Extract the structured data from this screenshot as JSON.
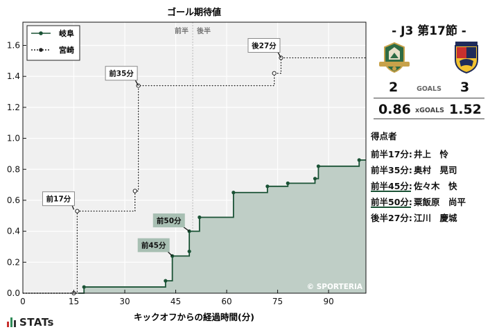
{
  "chart_data": {
    "type": "line",
    "title": "ゴール期待値",
    "xlabel": "キックオフからの経過時間(分)",
    "ylabel": "",
    "xlim": [
      0,
      101
    ],
    "ylim": [
      0,
      1.75
    ],
    "x_ticks": [
      0,
      15,
      30,
      45,
      60,
      75,
      90
    ],
    "y_ticks": [
      0.0,
      0.2,
      0.4,
      0.6,
      0.8,
      1.0,
      1.2,
      1.4,
      1.6
    ],
    "halftime_x": 50,
    "halftime_labels": {
      "first": "前半",
      "second": "後半"
    },
    "grid": true,
    "legend_position": "top-left",
    "watermark": "© SPORTERIA",
    "series": [
      {
        "name": "岐阜",
        "color": "#1a5235",
        "fill": "#bfcec6",
        "style": "solid",
        "points": [
          [
            0,
            0.0
          ],
          [
            18,
            0.04
          ],
          [
            42,
            0.08
          ],
          [
            44,
            0.24
          ],
          [
            49,
            0.27
          ],
          [
            49,
            0.4
          ],
          [
            52,
            0.49
          ],
          [
            62,
            0.65
          ],
          [
            72,
            0.69
          ],
          [
            78,
            0.71
          ],
          [
            86,
            0.74
          ],
          [
            87,
            0.82
          ],
          [
            99,
            0.86
          ],
          [
            101,
            0.86
          ]
        ]
      },
      {
        "name": "宮崎",
        "color": "#222222",
        "fill": "none",
        "style": "dashed",
        "points": [
          [
            0,
            0.0
          ],
          [
            15,
            0.0
          ],
          [
            16,
            0.53
          ],
          [
            33,
            0.66
          ],
          [
            34,
            1.34
          ],
          [
            74,
            1.42
          ],
          [
            76,
            1.52
          ],
          [
            101,
            1.52
          ]
        ]
      }
    ],
    "annotations": [
      {
        "label": "前17分",
        "x": 15,
        "y": 0.54,
        "team": "宮崎",
        "box_x": 10.5,
        "box_y": 0.61
      },
      {
        "label": "前35分",
        "x": 34,
        "y": 1.34,
        "team": "宮崎",
        "box_x": 29,
        "box_y": 1.42
      },
      {
        "label": "後27分",
        "x": 76,
        "y": 1.52,
        "team": "宮崎",
        "box_x": 71,
        "box_y": 1.6
      },
      {
        "label": "前50分",
        "x": 49,
        "y": 0.4,
        "team": "岐阜",
        "box_x": 43,
        "box_y": 0.47
      },
      {
        "label": "前45分",
        "x": 44,
        "y": 0.24,
        "team": "岐阜",
        "box_x": 38.5,
        "box_y": 0.31
      }
    ]
  },
  "match": {
    "title": "- J3 第17節 -",
    "home": {
      "name": "岐阜",
      "goals": "2",
      "xg": "0.86",
      "crest_icon": "fc-gifu-crest-icon"
    },
    "away": {
      "name": "宮崎",
      "goals": "3",
      "xg": "1.52",
      "crest_icon": "tegevajaro-miyazaki-crest-icon"
    },
    "goals_label": "GOALS",
    "xg_label": "xGOALS"
  },
  "scorers": {
    "title": "得点者",
    "items": [
      {
        "time": "前半17分:",
        "name": "井上　怜",
        "team": "宮崎"
      },
      {
        "time": "前半35分:",
        "name": "奥村　晃司",
        "team": "宮崎"
      },
      {
        "time": "前半45分:",
        "name": "佐々木　快",
        "team": "岐阜"
      },
      {
        "time": "前半50分:",
        "name": "粟飯原　尚平",
        "team": "岐阜"
      },
      {
        "time": "後半27分:",
        "name": "江川　慶城",
        "team": "宮崎"
      }
    ]
  },
  "brand": {
    "text": "STATs"
  }
}
